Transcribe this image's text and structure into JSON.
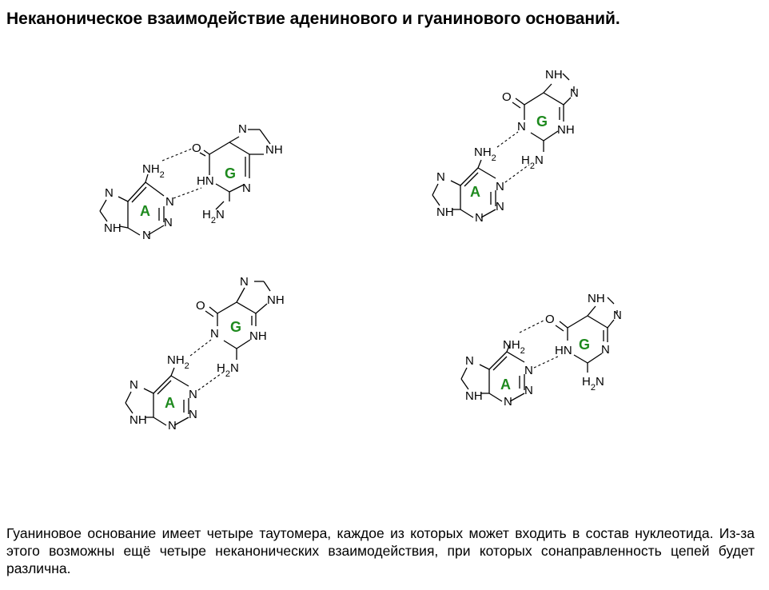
{
  "title": "Неканоническое взаимодействие аденинового и гуанинового оснований.",
  "caption": "Гуаниновое основание имеет четыре таутомера, каждое из которых может входить в состав нуклеотида. Из-за этого возможны ещё четыре неканонических взаимодействия, при которых сонаправленность цепей будет различна.",
  "colors": {
    "base_label": "#1e8a1e",
    "text": "#000000"
  },
  "pairs": [
    {
      "adenine": {
        "label": "A",
        "atoms": [
          "NH2",
          "N",
          "N",
          "NH",
          "N",
          "N"
        ]
      },
      "guanine": {
        "label": "G",
        "atoms": [
          "O",
          "HN",
          "H2N",
          "N",
          "NH",
          "N"
        ]
      }
    },
    {
      "adenine": {
        "label": "A",
        "atoms": [
          "NH2",
          "N",
          "N",
          "NH",
          "N",
          "N"
        ]
      },
      "guanine": {
        "label": "G",
        "atoms": [
          "O",
          "N",
          "NH",
          "H2N",
          "NH",
          "N"
        ]
      }
    },
    {
      "adenine": {
        "label": "A",
        "atoms": [
          "NH2",
          "N",
          "N",
          "NH",
          "N",
          "N"
        ]
      },
      "guanine": {
        "label": "G",
        "atoms": [
          "O",
          "N",
          "NH",
          "H2N",
          "N",
          "NH"
        ]
      }
    },
    {
      "adenine": {
        "label": "A",
        "atoms": [
          "NH2",
          "N",
          "N",
          "NH",
          "N",
          "N"
        ]
      },
      "guanine": {
        "label": "G",
        "atoms": [
          "O",
          "HN",
          "N",
          "H2N",
          "NH",
          "N"
        ]
      }
    }
  ]
}
